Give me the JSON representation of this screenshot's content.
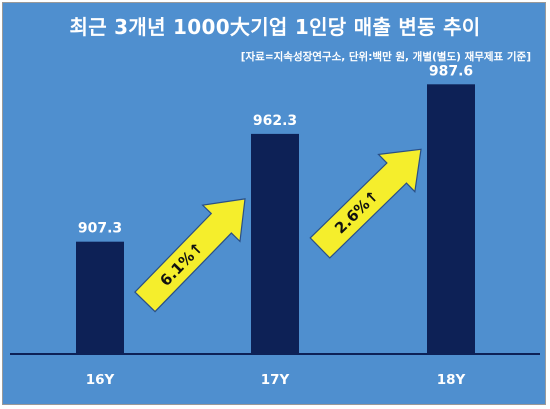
{
  "chart_data": {
    "type": "bar",
    "title": "최근 3개년 1000大기업 1인당 매출 변동 추이",
    "subtitle": "[자료=지속성장연구소, 단위:백만 원, 개별(별도) 재무제표 기준]",
    "categories": [
      "16Y",
      "17Y",
      "18Y"
    ],
    "values": [
      907.3,
      962.3,
      987.6
    ],
    "value_labels": [
      "907.3",
      "962.3",
      "987.6"
    ],
    "annotations": [
      {
        "from": "16Y",
        "to": "17Y",
        "label": "6.1%↑"
      },
      {
        "from": "17Y",
        "to": "18Y",
        "label": "2.6%↑"
      }
    ],
    "xlabel": "",
    "ylabel": "",
    "ylim": [
      850,
      1000
    ],
    "grid": false,
    "legend": "none",
    "colors": {
      "background": "#4f8fcf",
      "bar": "#0d2156",
      "axis": "#0d2156",
      "arrow_fill": "#f5ee2c",
      "arrow_stroke": "#2a4f86",
      "text": "#ffffff"
    }
  }
}
